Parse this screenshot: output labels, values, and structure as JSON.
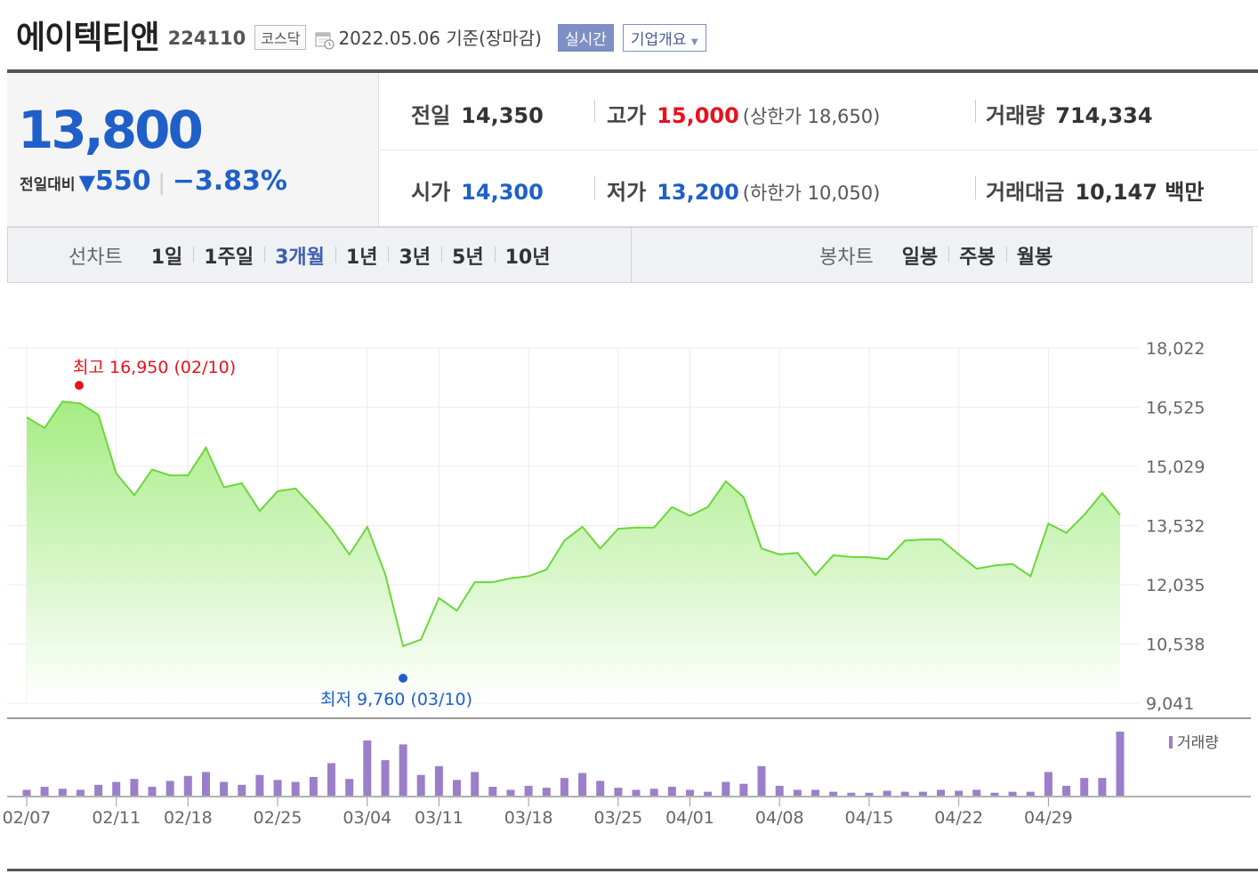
{
  "header": {
    "company_name": "에이텍티앤",
    "stock_code": "224110",
    "market": "코스닥",
    "date_text": "2022.05.06 기준(장마감)",
    "realtime_button": "실시간",
    "company_overview_button": "기업개요"
  },
  "quote": {
    "price": "13,800",
    "change_label": "전일대비",
    "change_arrow": "▼",
    "change_amount": "550",
    "change_percent": "−3.83%",
    "prev_close_label": "전일",
    "prev_close": "14,350",
    "high_label": "고가",
    "high": "15,000",
    "upper_limit": "(상한가 18,650)",
    "volume_label": "거래량",
    "volume": "714,334",
    "open_label": "시가",
    "open": "14,300",
    "low_label": "저가",
    "low": "13,200",
    "lower_limit": "(하한가 10,050)",
    "trade_value_label": "거래대금",
    "trade_value": "10,147 백만"
  },
  "tabs": {
    "line_chart_label": "선차트",
    "periods": [
      "1일",
      "1주일",
      "3개월",
      "1년",
      "3년",
      "5년",
      "10년"
    ],
    "active_period": "3개월",
    "candle_chart_label": "봉차트",
    "candle_periods": [
      "일봉",
      "주봉",
      "월봉"
    ]
  },
  "colors": {
    "line": "#6cd63c",
    "fill_top": "#a6ec84",
    "fill_bottom": "#ffffff",
    "volume_bar": "#9b7fc9",
    "up": "#e8121c",
    "down": "#1f5fc9"
  },
  "chart_data": {
    "type": "area",
    "y_ticks": [
      "18,022",
      "16,525",
      "15,029",
      "13,532",
      "12,035",
      "10,538",
      "9,041"
    ],
    "ylim": [
      9041,
      18022
    ],
    "x_tick_labels": [
      "02/07",
      "02/11",
      "02/18",
      "02/25",
      "03/04",
      "03/11",
      "03/18",
      "03/25",
      "04/01",
      "04/08",
      "04/15",
      "04/22",
      "04/29"
    ],
    "max_annotation": "최고 16,950 (02/10)",
    "min_annotation": "최저 9,760 (03/10)",
    "volume_label": "거래량",
    "series": [
      {
        "values": [
          16270,
          16000,
          16670,
          16620,
          16330,
          14850,
          14300,
          14950,
          14800,
          14800,
          15500,
          14500,
          14600,
          13900,
          14400,
          14470,
          13980,
          13450,
          12800,
          13500,
          12300,
          10480,
          10650,
          11700,
          11380,
          12100,
          12100,
          12200,
          12250,
          12420,
          13150,
          13500,
          12950,
          13450,
          13480,
          13480,
          14000,
          13780,
          14000,
          14650,
          14250,
          12950,
          12800,
          12840,
          12280,
          12780,
          12740,
          12730,
          12680,
          13150,
          13180,
          13180,
          12800,
          12440,
          12520,
          12560,
          12250,
          13580,
          13350,
          13800,
          14350,
          13800
        ]
      },
      {
        "name": "거래량",
        "values": [
          6,
          9,
          7,
          6,
          11,
          14,
          17,
          9,
          15,
          20,
          24,
          14,
          11,
          21,
          16,
          14,
          19,
          33,
          17,
          56,
          36,
          52,
          21,
          30,
          16,
          24,
          9,
          6,
          10,
          8,
          18,
          23,
          15,
          8,
          6,
          7,
          9,
          6,
          4,
          14,
          12,
          30,
          10,
          6,
          6,
          4,
          3,
          3,
          5,
          4,
          4,
          6,
          5,
          6,
          3,
          4,
          4,
          24,
          10,
          18,
          18,
          65
        ]
      }
    ]
  }
}
